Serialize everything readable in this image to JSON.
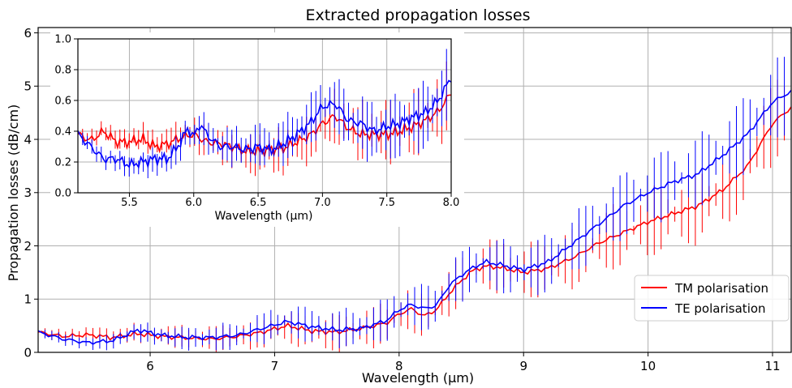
{
  "colors": {
    "tm": "#ff0000",
    "te": "#0000ff",
    "grid": "#b0b0b0",
    "axis": "#000000"
  },
  "chart_data": [
    {
      "type": "line",
      "title": "Extracted propagation losses",
      "xlabel": "Wavelength (µm)",
      "ylabel": "Propagation losses (dB/cm)",
      "xlim": [
        5.1,
        11.15
      ],
      "ylim": [
        0,
        6.1
      ],
      "xticks": [
        6,
        7,
        8,
        9,
        10,
        11
      ],
      "yticks": [
        0,
        1,
        2,
        3,
        4,
        5,
        6
      ],
      "grid": true,
      "legend": "lower-right",
      "series": [
        {
          "name": "TM polarisation",
          "color": "#ff0000",
          "points": [
            [
              5.1,
              0.38
            ],
            [
              5.3,
              0.3
            ],
            [
              5.5,
              0.33
            ],
            [
              5.7,
              0.28
            ],
            [
              5.9,
              0.35
            ],
            [
              6.1,
              0.3
            ],
            [
              6.3,
              0.27
            ],
            [
              6.5,
              0.25
            ],
            [
              6.7,
              0.3
            ],
            [
              6.9,
              0.38
            ],
            [
              7.1,
              0.5
            ],
            [
              7.3,
              0.4
            ],
            [
              7.5,
              0.38
            ],
            [
              7.7,
              0.45
            ],
            [
              7.9,
              0.55
            ],
            [
              8.0,
              0.72
            ],
            [
              8.1,
              0.82
            ],
            [
              8.2,
              0.68
            ],
            [
              8.3,
              0.8
            ],
            [
              8.4,
              1.1
            ],
            [
              8.5,
              1.35
            ],
            [
              8.6,
              1.55
            ],
            [
              8.7,
              1.62
            ],
            [
              8.8,
              1.6
            ],
            [
              8.9,
              1.55
            ],
            [
              9.0,
              1.5
            ],
            [
              9.2,
              1.58
            ],
            [
              9.4,
              1.78
            ],
            [
              9.6,
              2.05
            ],
            [
              9.8,
              2.25
            ],
            [
              10.0,
              2.45
            ],
            [
              10.2,
              2.6
            ],
            [
              10.4,
              2.75
            ],
            [
              10.6,
              3.05
            ],
            [
              10.8,
              3.5
            ],
            [
              11.0,
              4.3
            ],
            [
              11.15,
              4.6
            ]
          ]
        },
        {
          "name": "TE polarisation",
          "color": "#0000ff",
          "points": [
            [
              5.1,
              0.38
            ],
            [
              5.3,
              0.25
            ],
            [
              5.5,
              0.18
            ],
            [
              5.7,
              0.22
            ],
            [
              5.9,
              0.42
            ],
            [
              6.1,
              0.32
            ],
            [
              6.3,
              0.28
            ],
            [
              6.5,
              0.28
            ],
            [
              6.7,
              0.32
            ],
            [
              6.9,
              0.45
            ],
            [
              7.1,
              0.58
            ],
            [
              7.3,
              0.48
            ],
            [
              7.5,
              0.42
            ],
            [
              7.7,
              0.45
            ],
            [
              7.9,
              0.6
            ],
            [
              8.0,
              0.8
            ],
            [
              8.1,
              0.9
            ],
            [
              8.2,
              0.82
            ],
            [
              8.3,
              0.88
            ],
            [
              8.4,
              1.25
            ],
            [
              8.5,
              1.45
            ],
            [
              8.6,
              1.6
            ],
            [
              8.7,
              1.7
            ],
            [
              8.8,
              1.65
            ],
            [
              8.9,
              1.6
            ],
            [
              9.0,
              1.55
            ],
            [
              9.2,
              1.7
            ],
            [
              9.4,
              2.05
            ],
            [
              9.6,
              2.4
            ],
            [
              9.8,
              2.75
            ],
            [
              10.0,
              3.0
            ],
            [
              10.2,
              3.2
            ],
            [
              10.4,
              3.35
            ],
            [
              10.6,
              3.7
            ],
            [
              10.8,
              4.1
            ],
            [
              11.0,
              4.7
            ],
            [
              11.15,
              4.9
            ]
          ]
        }
      ]
    },
    {
      "type": "line",
      "title": "",
      "xlabel": "Wavelength (µm)",
      "ylabel": "",
      "xlim": [
        5.1,
        8.0
      ],
      "ylim": [
        0,
        1.0
      ],
      "xticks": [
        5.5,
        6.0,
        6.5,
        7.0,
        7.5,
        8.0
      ],
      "yticks": [
        0.0,
        0.2,
        0.4,
        0.6,
        0.8,
        1.0
      ],
      "grid": true,
      "series": [
        {
          "name": "TM polarisation",
          "color": "#ff0000",
          "points": [
            [
              5.1,
              0.38
            ],
            [
              5.2,
              0.34
            ],
            [
              5.3,
              0.4
            ],
            [
              5.4,
              0.33
            ],
            [
              5.5,
              0.33
            ],
            [
              5.6,
              0.35
            ],
            [
              5.7,
              0.3
            ],
            [
              5.8,
              0.32
            ],
            [
              5.9,
              0.36
            ],
            [
              6.0,
              0.38
            ],
            [
              6.1,
              0.33
            ],
            [
              6.2,
              0.32
            ],
            [
              6.3,
              0.3
            ],
            [
              6.4,
              0.27
            ],
            [
              6.5,
              0.27
            ],
            [
              6.6,
              0.28
            ],
            [
              6.7,
              0.29
            ],
            [
              6.8,
              0.33
            ],
            [
              6.9,
              0.37
            ],
            [
              7.0,
              0.45
            ],
            [
              7.1,
              0.5
            ],
            [
              7.2,
              0.42
            ],
            [
              7.3,
              0.38
            ],
            [
              7.4,
              0.38
            ],
            [
              7.5,
              0.38
            ],
            [
              7.6,
              0.4
            ],
            [
              7.7,
              0.43
            ],
            [
              7.8,
              0.47
            ],
            [
              7.9,
              0.53
            ],
            [
              8.0,
              0.65
            ]
          ]
        },
        {
          "name": "TE polarisation",
          "color": "#0000ff",
          "points": [
            [
              5.1,
              0.38
            ],
            [
              5.2,
              0.3
            ],
            [
              5.3,
              0.22
            ],
            [
              5.4,
              0.22
            ],
            [
              5.5,
              0.18
            ],
            [
              5.6,
              0.2
            ],
            [
              5.7,
              0.22
            ],
            [
              5.8,
              0.22
            ],
            [
              5.9,
              0.33
            ],
            [
              5.95,
              0.42
            ],
            [
              6.0,
              0.36
            ],
            [
              6.05,
              0.45
            ],
            [
              6.1,
              0.38
            ],
            [
              6.2,
              0.3
            ],
            [
              6.3,
              0.3
            ],
            [
              6.4,
              0.28
            ],
            [
              6.5,
              0.3
            ],
            [
              6.6,
              0.28
            ],
            [
              6.7,
              0.32
            ],
            [
              6.8,
              0.38
            ],
            [
              6.9,
              0.45
            ],
            [
              7.0,
              0.56
            ],
            [
              7.1,
              0.58
            ],
            [
              7.2,
              0.47
            ],
            [
              7.3,
              0.45
            ],
            [
              7.4,
              0.4
            ],
            [
              7.5,
              0.43
            ],
            [
              7.6,
              0.45
            ],
            [
              7.7,
              0.49
            ],
            [
              7.8,
              0.52
            ],
            [
              7.9,
              0.6
            ],
            [
              8.0,
              0.75
            ]
          ]
        }
      ]
    }
  ]
}
